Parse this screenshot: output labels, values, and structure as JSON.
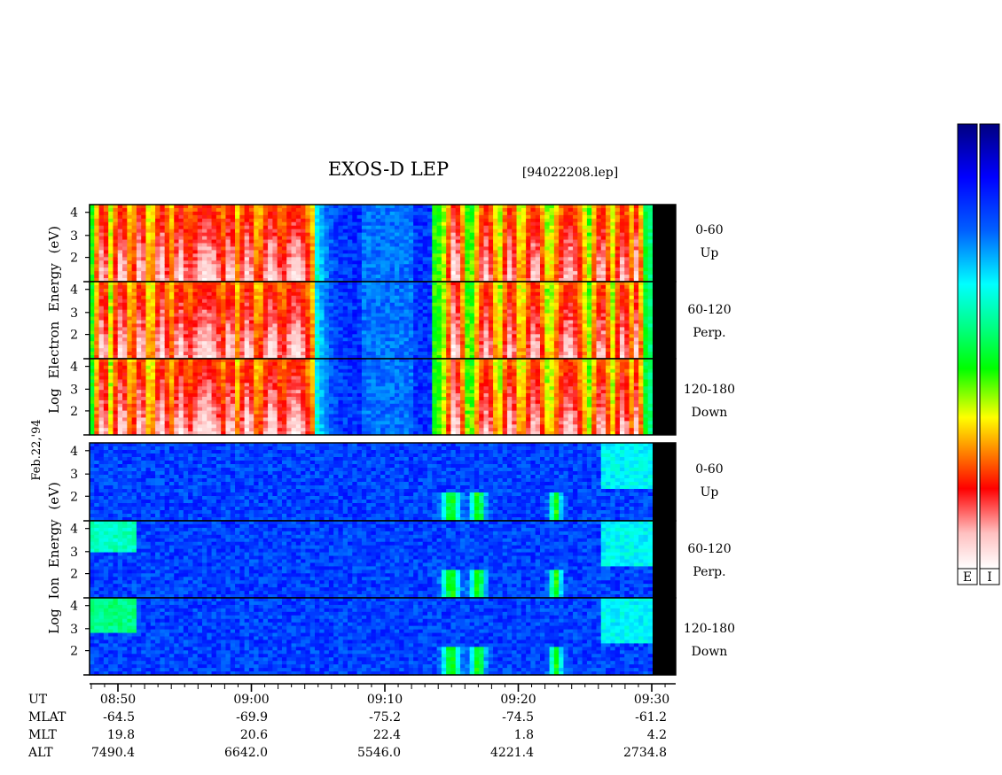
{
  "chart_data": {
    "type": "heatmap",
    "title": "EXOS-D LEP",
    "file_label": "[94022208.lep]",
    "date_label": "Feb.22,'94",
    "groups": [
      {
        "key": "electron",
        "ylabel": [
          "Log",
          "Electron",
          "Energy",
          "(eV)"
        ],
        "panels": [
          {
            "angle": "0-60",
            "dir": "Up"
          },
          {
            "angle": "60-120",
            "dir": "Perp."
          },
          {
            "angle": "120-180",
            "dir": "Down"
          }
        ]
      },
      {
        "key": "ion",
        "ylabel": [
          "Log",
          "Ion",
          "Energy",
          "(eV)"
        ],
        "panels": [
          {
            "angle": "0-60",
            "dir": "Up"
          },
          {
            "angle": "60-120",
            "dir": "Perp."
          },
          {
            "angle": "120-180",
            "dir": "Down"
          }
        ]
      }
    ],
    "y_ticks": [
      "2",
      "3",
      "4"
    ],
    "x_ticks": [
      "08:50",
      "09:00",
      "09:10",
      "09:20",
      "09:30"
    ],
    "ephemeris": {
      "labels": [
        "UT",
        "MLAT",
        "MLT",
        "ALT"
      ],
      "MLAT": [
        "-64.5",
        "-69.9",
        "-75.2",
        "-74.5",
        "-61.2"
      ],
      "MLT": [
        "19.8",
        "20.6",
        "22.4",
        "1.8",
        "4.2"
      ],
      "ALT": [
        "7490.4",
        "6642.0",
        "5546.0",
        "4221.4",
        "2734.8"
      ]
    },
    "colorbars": [
      {
        "label": "E"
      },
      {
        "label": "I"
      }
    ],
    "colormap": [
      "#000080",
      "#0000ff",
      "#0080ff",
      "#00ffff",
      "#00ff80",
      "#00ff00",
      "#ffff00",
      "#ff8000",
      "#ff0000",
      "#ffc0c0",
      "#ffffff"
    ]
  }
}
